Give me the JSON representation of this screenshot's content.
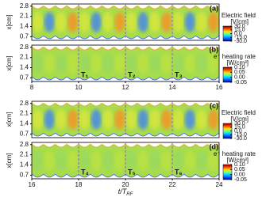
{
  "chart_data": [
    {
      "type": "heatmap",
      "panel_label": "(a)",
      "colorbar_title": "Electric field",
      "colorbar_unit": "[V/cm]",
      "xlim": [
        8,
        16
      ],
      "ylim": [
        0.45,
        2.95
      ],
      "yticks": [
        0.7,
        1.4,
        2.1,
        2.8
      ],
      "ylabel": "x[cm]",
      "clim": [
        -30,
        30
      ],
      "cticks": [
        {
          "value": 30,
          "label": "30.0"
        },
        {
          "value": 15,
          "label": "15.0"
        },
        {
          "value": 0,
          "label": "0.0"
        },
        {
          "value": -15,
          "label": "-15.0"
        },
        {
          "value": -30,
          "label": "-30.0"
        }
      ],
      "dashed_x": [
        10,
        12,
        14
      ]
    },
    {
      "type": "heatmap",
      "panel_label": "(b)",
      "colorbar_title": "e⁻ heating rate",
      "colorbar_unit": "[W/cm³]",
      "xlim": [
        8,
        16
      ],
      "xticks": [
        8,
        10,
        12,
        14,
        16
      ],
      "ylim": [
        0.45,
        2.95
      ],
      "yticks": [
        0.7,
        1.4,
        2.1,
        2.8
      ],
      "ylabel": "x[cm]",
      "clim": [
        -0.05,
        0.1
      ],
      "cticks": [
        {
          "value": 0.1,
          "label": "0.10"
        },
        {
          "value": 0.05,
          "label": "0.05"
        },
        {
          "value": 0,
          "label": "0.00"
        },
        {
          "value": -0.05,
          "label": "-0.05"
        }
      ],
      "markers": [
        {
          "x": 10,
          "label": "T₁"
        },
        {
          "x": 12,
          "label": "T₂"
        },
        {
          "x": 14,
          "label": "T₃"
        }
      ]
    },
    {
      "type": "heatmap",
      "panel_label": "(c)",
      "colorbar_title": "Electric field",
      "colorbar_unit": "[V/cm]",
      "xlim": [
        16,
        24
      ],
      "ylim": [
        0.45,
        2.95
      ],
      "yticks": [
        0.7,
        1.4,
        2.1,
        2.8
      ],
      "ylabel": "x[cm]",
      "clim": [
        -30,
        30
      ],
      "cticks": [
        {
          "value": 30,
          "label": "30.0"
        },
        {
          "value": 15,
          "label": "15.0"
        },
        {
          "value": 0,
          "label": "0.0"
        },
        {
          "value": -15,
          "label": "-15.0"
        },
        {
          "value": -30,
          "label": "-30.0"
        }
      ],
      "dashed_x": [
        18,
        20,
        22
      ]
    },
    {
      "type": "heatmap",
      "panel_label": "(d)",
      "colorbar_title": "e⁻ heating rate",
      "colorbar_unit": "[W/cm³]",
      "xlim": [
        16,
        24
      ],
      "xticks": [
        16,
        18,
        20,
        22,
        24
      ],
      "ylim": [
        0.45,
        2.95
      ],
      "yticks": [
        0.7,
        1.4,
        2.1,
        2.8
      ],
      "ylabel": "x[cm]",
      "clim": [
        -0.05,
        0.1
      ],
      "cticks": [
        {
          "value": 0.1,
          "label": "0.10"
        },
        {
          "value": 0.05,
          "label": "0.05"
        },
        {
          "value": 0,
          "label": "0.00"
        },
        {
          "value": -0.05,
          "label": "-0.05"
        }
      ],
      "markers": [
        {
          "x": 18,
          "label": "T₄"
        },
        {
          "x": 20,
          "label": "T₅"
        },
        {
          "x": 22,
          "label": "T₆"
        }
      ],
      "xlabel": "t/T",
      "xlabel_sub": "RF"
    }
  ]
}
